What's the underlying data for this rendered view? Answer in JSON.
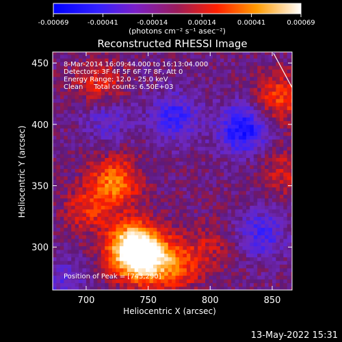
{
  "chart_data": {
    "type": "heatmap",
    "title": "Reconstructed RHESSI Image",
    "xlabel": "Heliocentric X (arcsec)",
    "ylabel": "Heliocentric Y (arcsec)",
    "xlim": [
      673,
      866
    ],
    "ylim": [
      265,
      459
    ],
    "x_ticks": [
      700,
      750,
      800,
      850
    ],
    "y_ticks": [
      300,
      350,
      400,
      450
    ],
    "colorbar": {
      "ticks": [
        "-0.00069",
        "-0.00041",
        "-0.00014",
        "0.00014",
        "0.00041",
        "0.00069"
      ],
      "unit_label": "(photons cm⁻² s⁻¹ asec⁻²)",
      "range": [
        -0.00069,
        0.00069
      ]
    },
    "annotations": [
      "8-Mar-2014 16:09:44.000 to 16:13:04.000",
      "Detectors: 3F 4F 5F 6F 7F 8F, Att 0",
      "Energy Range: 12.0 - 25.0 keV",
      "Clean     Total counts: 6.50E+03"
    ],
    "peak_label": "Position of Peak = [743,290]",
    "peak_position": [
      743,
      290
    ],
    "hot_regions": [
      {
        "x": 743,
        "y": 290,
        "value": 0.00069
      },
      {
        "x": 722,
        "y": 352,
        "value": 0.00045
      },
      {
        "x": 735,
        "y": 300,
        "value": 0.0006
      },
      {
        "x": 770,
        "y": 285,
        "value": 0.0004
      },
      {
        "x": 700,
        "y": 330,
        "value": 0.00025
      },
      {
        "x": 855,
        "y": 420,
        "value": 0.00035
      },
      {
        "x": 858,
        "y": 360,
        "value": 0.0002
      },
      {
        "x": 710,
        "y": 430,
        "value": 0.0003
      },
      {
        "x": 800,
        "y": 300,
        "value": 0.00015
      }
    ],
    "cold_regions": [
      {
        "x": 825,
        "y": 395,
        "value": -0.0005
      },
      {
        "x": 770,
        "y": 405,
        "value": -0.00035
      },
      {
        "x": 840,
        "y": 310,
        "value": -0.0003
      },
      {
        "x": 715,
        "y": 405,
        "value": -0.00025
      },
      {
        "x": 680,
        "y": 270,
        "value": -0.0002
      }
    ],
    "background_value": -8e-05
  },
  "timestamp": "13-May-2022 15:31"
}
